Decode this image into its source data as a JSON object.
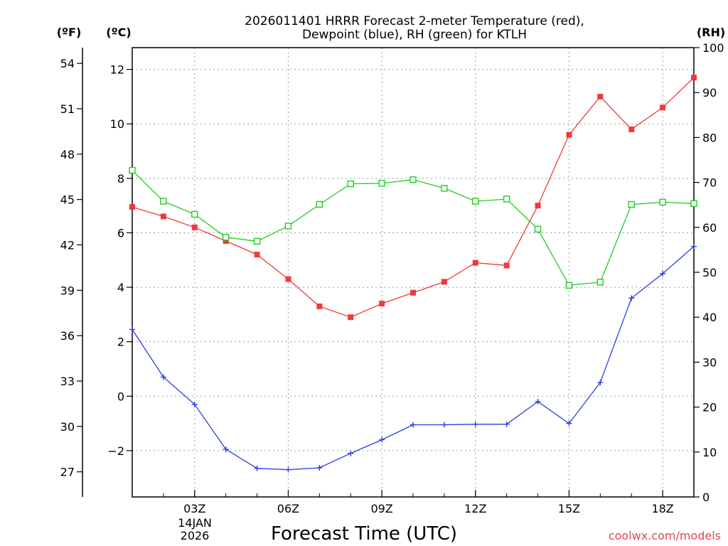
{
  "chart_data": {
    "type": "line",
    "title_line1": "2026011401 HRRR Forecast 2-meter Temperature (red),",
    "title_line2": "Dewpoint (blue), RH (green) for KTLH",
    "xlabel": "Forecast Time (UTC)",
    "credit": "coolwx.com/models",
    "units": {
      "fahrenheit": "(ºF)",
      "celsius": "(ºC)",
      "rh": "(RH)"
    },
    "date_label": [
      "14JAN",
      "2026"
    ],
    "x_hours": [
      1,
      2,
      3,
      4,
      5,
      6,
      7,
      8,
      9,
      10,
      11,
      12,
      13,
      14,
      15,
      16,
      17,
      18,
      19
    ],
    "xlim": [
      1,
      19
    ],
    "x_ticks": [
      {
        "hour": 3,
        "label": "03Z"
      },
      {
        "hour": 6,
        "label": "06Z"
      },
      {
        "hour": 9,
        "label": "09Z"
      },
      {
        "hour": 12,
        "label": "12Z"
      },
      {
        "hour": 15,
        "label": "15Z"
      },
      {
        "hour": 18,
        "label": "18Z"
      }
    ],
    "celsius_ylim": [
      -3.7,
      12.8
    ],
    "celsius_ticks": [
      -2,
      0,
      2,
      4,
      6,
      8,
      10,
      12
    ],
    "celsius_tick_labels": [
      "−2",
      "0",
      "2",
      "4",
      "6",
      "8",
      "10",
      "12"
    ],
    "fahrenheit_ticks": [
      27,
      30,
      33,
      36,
      39,
      42,
      45,
      48,
      51,
      54
    ],
    "fahrenheit_tick_labels": [
      "27",
      "30",
      "33",
      "36",
      "39",
      "42",
      "45",
      "48",
      "51",
      "54"
    ],
    "rh_ylim": [
      0,
      100
    ],
    "rh_ticks": [
      0,
      10,
      20,
      30,
      40,
      50,
      60,
      70,
      80,
      90,
      100
    ],
    "rh_tick_labels": [
      "0",
      "10",
      "20",
      "30",
      "40",
      "50",
      "60",
      "70",
      "80",
      "90",
      "100"
    ],
    "series": [
      {
        "name": "2-meter Temperature",
        "axis": "celsius",
        "color": "#f03a3a",
        "marker": "filled-square",
        "values": [
          6.95,
          6.6,
          6.2,
          5.7,
          5.2,
          4.3,
          3.3,
          2.9,
          3.4,
          3.8,
          4.2,
          4.9,
          4.8,
          7.0,
          9.6,
          11.0,
          9.8,
          10.6,
          11.7
        ]
      },
      {
        "name": "Dewpoint",
        "axis": "celsius",
        "color": "#2b3fe0",
        "marker": "plus",
        "values": [
          2.45,
          0.7,
          -0.3,
          -1.95,
          -2.65,
          -2.7,
          -2.63,
          -2.1,
          -1.6,
          -1.05,
          -1.05,
          -1.03,
          -1.03,
          -0.2,
          -1.0,
          0.5,
          3.6,
          4.5,
          5.5
        ]
      },
      {
        "name": "RH",
        "axis": "rh",
        "color": "#22cc22",
        "marker": "open-square",
        "values": [
          72.7,
          65.8,
          62.9,
          57.8,
          56.9,
          60.3,
          65.1,
          69.7,
          69.8,
          70.6,
          68.7,
          65.8,
          66.3,
          59.6,
          47.1,
          47.8,
          65.1,
          65.6,
          65.3
        ]
      }
    ]
  }
}
